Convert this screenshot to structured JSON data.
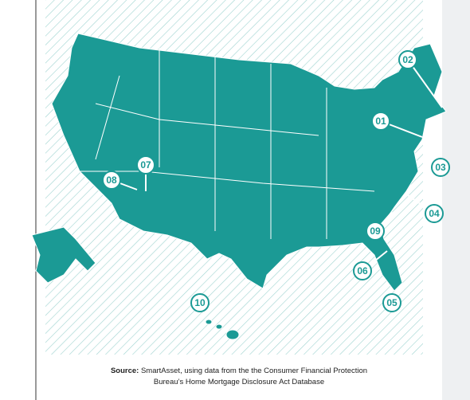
{
  "markers": [
    {
      "label": "01"
    },
    {
      "label": "02"
    },
    {
      "label": "03"
    },
    {
      "label": "04"
    },
    {
      "label": "05"
    },
    {
      "label": "06"
    },
    {
      "label": "07"
    },
    {
      "label": "08"
    },
    {
      "label": "09"
    },
    {
      "label": "10"
    }
  ],
  "source": {
    "prefix": "Source:",
    "line1": "SmartAsset, using data from the the Consumer Financial Protection",
    "line2": "Bureau’s Home Mortgage Disclosure Act Database"
  }
}
